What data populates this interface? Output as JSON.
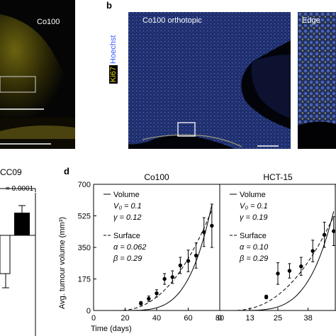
{
  "panel_a": {
    "label": "Co100"
  },
  "panel_b": {
    "letter": "b",
    "stain_ki67": "Ki67",
    "stain_hoechst": "Hoechst",
    "main_label": "Co100 orthotopic",
    "inset_label": "Edge"
  },
  "panel_c": {
    "title": "CC09",
    "pvalue": "= 0.0001"
  },
  "panel_d": {
    "letter": "d",
    "ylabel": "Avg. tumour volume (mm³)",
    "xlabel": "Time (days)",
    "colors": {
      "points": "#000000",
      "volume": "#000000",
      "surface": "#000000"
    }
  },
  "chart_data": [
    {
      "type": "scatter",
      "title": "Co100",
      "xlabel": "Time (days)",
      "ylabel": "Avg. tumour volume (mm³)",
      "xlim": [
        0,
        80
      ],
      "ylim": [
        0,
        700
      ],
      "xticks": [
        0,
        20,
        40,
        60,
        80
      ],
      "yticks": [
        0,
        175,
        350,
        525,
        700
      ],
      "legend": {
        "volume_title": "Volume",
        "volume_params": [
          "V₀ = 0.1",
          "γ = 0.12"
        ],
        "surface_title": "Surface",
        "surface_params": [
          "α = 0.062",
          "β = 0.29"
        ]
      },
      "series": [
        {
          "x": [
            30,
            35,
            40,
            45,
            50,
            55,
            60,
            65,
            70,
            75
          ],
          "y": [
            40,
            65,
            95,
            175,
            185,
            250,
            275,
            305,
            435,
            470
          ],
          "err": [
            10,
            15,
            20,
            30,
            35,
            45,
            60,
            70,
            80,
            120
          ]
        }
      ]
    },
    {
      "type": "scatter",
      "title": "HCT-15",
      "xlim": [
        0,
        50
      ],
      "ylim": [
        0,
        700
      ],
      "xticks": [
        0,
        13,
        25,
        38
      ],
      "legend": {
        "volume_title": "Volume",
        "volume_params": [
          "V₀ = 0.1",
          "γ = 0.19"
        ],
        "surface_title": "Surface",
        "surface_params": [
          "α = 0.10",
          "β = 0.29"
        ]
      },
      "series": [
        {
          "x": [
            20,
            25,
            30,
            35,
            40,
            45,
            49
          ],
          "y": [
            75,
            205,
            220,
            245,
            330,
            420,
            440
          ],
          "err": [
            10,
            60,
            40,
            50,
            60,
            70,
            80
          ]
        }
      ]
    }
  ]
}
